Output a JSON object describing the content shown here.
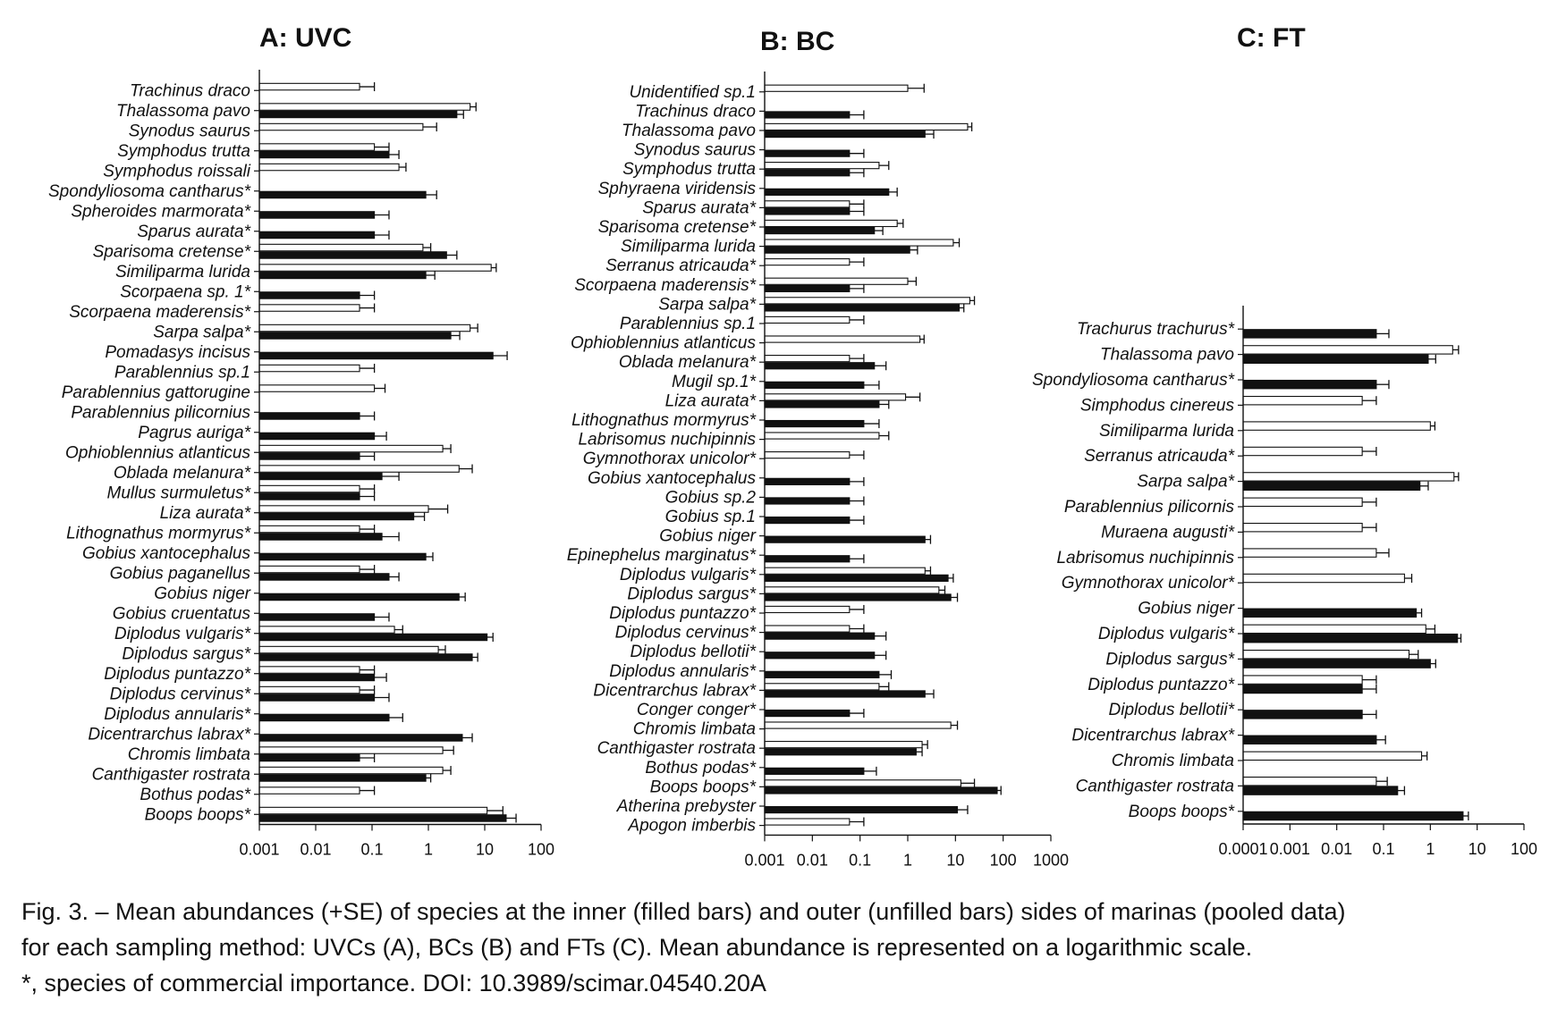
{
  "chart_data": [
    {
      "type": "bar",
      "orientation": "horizontal",
      "title": "A: UVC",
      "xscale": "log",
      "xlim": [
        0.001,
        100
      ],
      "x_tick_labels": [
        "0.001",
        "0.01",
        "0.1",
        "1",
        "10",
        "100"
      ],
      "categories": [
        "Trachinus draco",
        "Thalassoma pavo",
        "Synodus saurus",
        "Symphodus trutta",
        "Symphodus roissali",
        "Spondyliosoma cantharus*",
        "Spheroides marmorata*",
        "Sparus aurata*",
        "Sparisoma cretense*",
        "Similiparma lurida",
        "Scorpaena sp. 1*",
        "Scorpaena maderensis*",
        "Sarpa salpa*",
        "Pomadasys incisus",
        "Parablennius sp.1",
        "Parablennius gattorugine",
        "Parablennius pilicornius",
        "Pagrus auriga*",
        "Ophioblennius atlanticus",
        "Oblada melanura*",
        "Mullus surmuletus*",
        "Liza aurata*",
        "Lithognathus mormyrus*",
        "Gobius xantocephalus",
        "Gobius paganellus",
        "Gobius niger",
        "Gobius cruentatus",
        "Diplodus vulgaris*",
        "Diplodus sargus*",
        "Diplodus puntazzo*",
        "Diplodus cervinus*",
        "Diplodus annularis*",
        "Dicentrarchus labrax*",
        "Chromis limbata",
        "Canthigaster rostrata",
        "Bothus podas*",
        "Boops boops*"
      ],
      "series": [
        {
          "fill": "#111111",
          "values": [
            null,
            3.2,
            null,
            0.2,
            null,
            0.9,
            0.11,
            0.11,
            2.1,
            0.9,
            0.06,
            null,
            2.5,
            14,
            null,
            null,
            0.06,
            0.11,
            0.06,
            0.15,
            0.06,
            0.55,
            0.15,
            0.9,
            0.2,
            3.5,
            0.11,
            11,
            6,
            0.11,
            0.11,
            0.2,
            4,
            0.06,
            0.9,
            null,
            24
          ],
          "errors": [
            null,
            4.2,
            null,
            0.3,
            null,
            1.4,
            0.2,
            0.2,
            3.2,
            1.3,
            0.11,
            null,
            3.6,
            25,
            null,
            null,
            0.11,
            0.18,
            0.11,
            0.3,
            0.11,
            0.85,
            0.3,
            1.2,
            0.3,
            4.5,
            0.2,
            14,
            7.5,
            0.18,
            0.2,
            0.35,
            6,
            0.11,
            1.1,
            null,
            36
          ]
        },
        {
          "fill": "#ffffff",
          "values": [
            0.06,
            5.5,
            0.8,
            0.11,
            0.3,
            null,
            null,
            null,
            0.8,
            13,
            null,
            0.06,
            5.5,
            null,
            0.06,
            0.11,
            null,
            null,
            1.8,
            3.5,
            0.06,
            1.0,
            0.06,
            null,
            0.06,
            null,
            null,
            0.25,
            1.5,
            0.06,
            0.06,
            null,
            null,
            1.8,
            1.8,
            0.06,
            11
          ],
          "errors": [
            0.11,
            7,
            1.4,
            0.2,
            0.4,
            null,
            null,
            null,
            1.1,
            16,
            null,
            0.11,
            7.5,
            null,
            0.11,
            0.17,
            null,
            null,
            2.5,
            6,
            0.11,
            2.2,
            0.11,
            null,
            0.11,
            null,
            null,
            0.35,
            2,
            0.11,
            0.11,
            null,
            null,
            2.8,
            2.5,
            0.11,
            21
          ]
        }
      ]
    },
    {
      "type": "bar",
      "orientation": "horizontal",
      "title": "B: BC",
      "xscale": "log",
      "xlim": [
        0.001,
        1000
      ],
      "x_tick_labels": [
        "0.001",
        "0.01",
        "0.1",
        "1",
        "10",
        "100",
        "1000"
      ],
      "categories": [
        "Unidentified sp.1",
        "Trachinus draco",
        "Thalassoma pavo",
        "Synodus saurus",
        "Symphodus trutta",
        "Sphyraena viridensis",
        "Sparus aurata*",
        "Sparisoma cretense*",
        "Similiparma lurida",
        "Serranus atricauda*",
        "Scorpaena maderensis*",
        "Sarpa salpa*",
        "Parablennius sp.1",
        "Ophioblennius atlanticus",
        "Oblada melanura*",
        "Mugil sp.1*",
        "Liza aurata*",
        "Lithognathus mormyrus*",
        "Labrisomus nuchipinnis",
        "Gymnothorax unicolor*",
        "Gobius xantocephalus",
        "Gobius sp.2",
        "Gobius sp.1",
        "Gobius niger",
        "Epinephelus marginatus*",
        "Diplodus vulgaris*",
        "Diplodus sargus*",
        "Diplodus puntazzo*",
        "Diplodus cervinus*",
        "Diplodus bellotii*",
        "Diplodus annularis*",
        "Dicentrarchus labrax*",
        "Conger conger*",
        "Chromis limbata",
        "Canthigaster rostrata",
        "Bothus podas*",
        "Boops boops*",
        "Atherina prebyster",
        "Apogon imberbis"
      ],
      "series": [
        {
          "fill": "#111111",
          "values": [
            null,
            0.06,
            2.3,
            0.06,
            0.06,
            0.4,
            0.06,
            0.2,
            1.1,
            null,
            0.06,
            12,
            null,
            null,
            0.2,
            0.12,
            0.25,
            0.12,
            null,
            null,
            0.06,
            0.06,
            0.06,
            2.3,
            0.06,
            7,
            8,
            null,
            0.2,
            0.2,
            0.25,
            2.3,
            0.06,
            null,
            1.5,
            0.12,
            75,
            11,
            null
          ],
          "errors": [
            null,
            0.12,
            3.5,
            0.12,
            0.12,
            0.6,
            0.12,
            0.3,
            1.6,
            null,
            0.12,
            15,
            null,
            null,
            0.35,
            0.25,
            0.4,
            0.25,
            null,
            null,
            0.12,
            0.12,
            0.12,
            3,
            0.12,
            9,
            11,
            null,
            0.35,
            0.35,
            0.45,
            3.5,
            0.12,
            null,
            2,
            0.22,
            90,
            18,
            null
          ]
        },
        {
          "fill": "#ffffff",
          "values": [
            1.0,
            null,
            18,
            null,
            0.25,
            null,
            0.06,
            0.6,
            9,
            0.06,
            1.0,
            20,
            0.06,
            1.8,
            0.06,
            null,
            0.9,
            null,
            0.25,
            0.06,
            null,
            null,
            null,
            null,
            null,
            2.3,
            4.5,
            0.06,
            0.06,
            null,
            null,
            0.25,
            null,
            8,
            2,
            null,
            13,
            null,
            0.06
          ],
          "errors": [
            2.2,
            null,
            22,
            null,
            0.4,
            null,
            0.12,
            0.8,
            12,
            0.12,
            1.5,
            25,
            0.12,
            2.2,
            0.12,
            null,
            1.8,
            null,
            0.4,
            0.12,
            null,
            null,
            null,
            null,
            null,
            3,
            6,
            0.12,
            0.12,
            null,
            null,
            0.4,
            null,
            11,
            2.6,
            null,
            25,
            null,
            0.12
          ]
        }
      ]
    },
    {
      "type": "bar",
      "orientation": "horizontal",
      "title": "C: FT",
      "xscale": "log",
      "xlim": [
        0.0001,
        100
      ],
      "x_tick_labels": [
        "0.0001",
        "0.001",
        "0.01",
        "0.1",
        "1",
        "10",
        "100"
      ],
      "categories": [
        "Trachurus trachurus*",
        "Thalassoma pavo",
        "Spondyliosoma cantharus*",
        "Simphodus cinereus",
        "Similiparma lurida",
        "Serranus atricauda*",
        "Sarpa salpa*",
        "Parablennius pilicornis",
        "Muraena augusti*",
        "Labrisomus nuchipinnis",
        "Gymnothorax unicolor*",
        "Gobius niger",
        "Diplodus vulgaris*",
        "Diplodus sargus*",
        "Diplodus puntazzo*",
        "Diplodus bellotii*",
        "Dicentrarchus labrax*",
        "Chromis limbata",
        "Canthigaster rostrata",
        "Boops boops*"
      ],
      "series": [
        {
          "fill": "#111111",
          "values": [
            0.07,
            0.9,
            0.07,
            null,
            null,
            null,
            0.6,
            null,
            null,
            null,
            null,
            0.5,
            3.8,
            1.0,
            0.035,
            0.035,
            0.07,
            null,
            0.2,
            5
          ],
          "errors": [
            0.13,
            1.3,
            0.13,
            null,
            null,
            null,
            0.9,
            null,
            null,
            null,
            null,
            0.65,
            4.5,
            1.3,
            0.07,
            0.07,
            0.11,
            null,
            0.28,
            6.5
          ]
        },
        {
          "fill": "#ffffff",
          "values": [
            null,
            3,
            null,
            0.035,
            1.0,
            0.035,
            3.2,
            0.035,
            0.035,
            0.07,
            0.28,
            null,
            0.8,
            0.35,
            0.035,
            null,
            null,
            0.65,
            0.07,
            null
          ],
          "errors": [
            null,
            4,
            null,
            0.07,
            1.25,
            0.07,
            4,
            0.07,
            0.07,
            0.13,
            0.4,
            null,
            1.25,
            0.55,
            0.07,
            null,
            null,
            0.85,
            0.12,
            null
          ]
        }
      ]
    }
  ],
  "caption": {
    "line1": "Fig. 3. – Mean abundances (+SE) of species at the inner (filled bars) and outer (unfilled bars) sides of marinas (pooled data)",
    "line2": "for each sampling method: UVCs (A), BCs (B) and FTs (C). Mean abundance is represented on a logarithmic scale.",
    "line3": "*, species of commercial importance. DOI: 10.3989/scimar.04540.20A"
  }
}
